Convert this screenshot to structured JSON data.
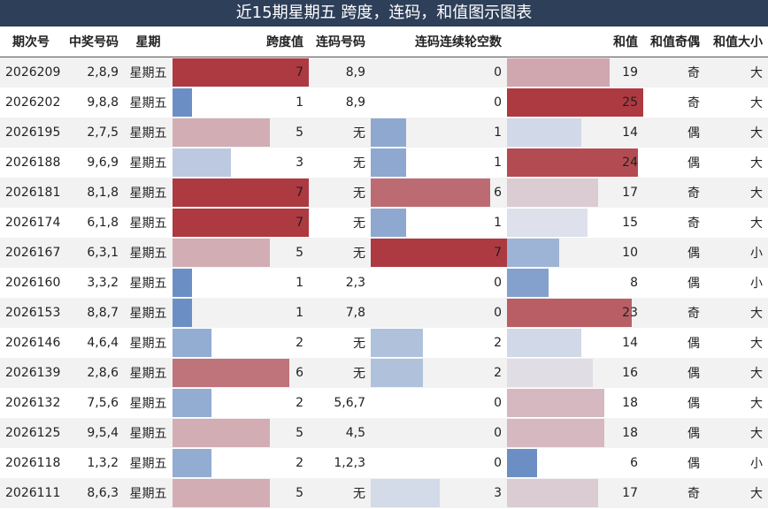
{
  "title": "近15期星期五 跨度，连码，和值图示图表",
  "headers": {
    "period": "期次号",
    "numbers": "中奖号码",
    "weekday": "星期",
    "span": "跨度值",
    "consec": "连码号码",
    "gap": "连码连续轮空数",
    "sum": "和值",
    "parity": "和值奇偶",
    "size": "和值大小"
  },
  "chart_data": {
    "type": "table",
    "scales": {
      "span": {
        "min": 1,
        "max": 7
      },
      "gap": {
        "min": 0,
        "max": 7
      },
      "sum": {
        "min": 6,
        "max": 25
      }
    },
    "colors": {
      "low": "#6b8fc4",
      "mid": "#e4e6ee",
      "high": "#ad3a40"
    },
    "rows": [
      {
        "period": "2026209",
        "numbers": "2,8,9",
        "weekday": "星期五",
        "span": 7,
        "consec": "8,9",
        "gap": 0,
        "sum": 19,
        "parity": "奇",
        "size": "大"
      },
      {
        "period": "2026202",
        "numbers": "9,8,8",
        "weekday": "星期五",
        "span": 1,
        "consec": "8,9",
        "gap": 0,
        "sum": 25,
        "parity": "奇",
        "size": "大"
      },
      {
        "period": "2026195",
        "numbers": "2,7,5",
        "weekday": "星期五",
        "span": 5,
        "consec": "无",
        "gap": 1,
        "sum": 14,
        "parity": "偶",
        "size": "大"
      },
      {
        "period": "2026188",
        "numbers": "9,6,9",
        "weekday": "星期五",
        "span": 3,
        "consec": "无",
        "gap": 1,
        "sum": 24,
        "parity": "偶",
        "size": "大"
      },
      {
        "period": "2026181",
        "numbers": "8,1,8",
        "weekday": "星期五",
        "span": 7,
        "consec": "无",
        "gap": 6,
        "sum": 17,
        "parity": "奇",
        "size": "大"
      },
      {
        "period": "2026174",
        "numbers": "6,1,8",
        "weekday": "星期五",
        "span": 7,
        "consec": "无",
        "gap": 1,
        "sum": 15,
        "parity": "奇",
        "size": "大"
      },
      {
        "period": "2026167",
        "numbers": "6,3,1",
        "weekday": "星期五",
        "span": 5,
        "consec": "无",
        "gap": 7,
        "sum": 10,
        "parity": "偶",
        "size": "小"
      },
      {
        "period": "2026160",
        "numbers": "3,3,2",
        "weekday": "星期五",
        "span": 1,
        "consec": "2,3",
        "gap": 0,
        "sum": 8,
        "parity": "偶",
        "size": "小"
      },
      {
        "period": "2026153",
        "numbers": "8,8,7",
        "weekday": "星期五",
        "span": 1,
        "consec": "7,8",
        "gap": 0,
        "sum": 23,
        "parity": "奇",
        "size": "大"
      },
      {
        "period": "2026146",
        "numbers": "4,6,4",
        "weekday": "星期五",
        "span": 2,
        "consec": "无",
        "gap": 2,
        "sum": 14,
        "parity": "偶",
        "size": "大"
      },
      {
        "period": "2026139",
        "numbers": "2,8,6",
        "weekday": "星期五",
        "span": 6,
        "consec": "无",
        "gap": 2,
        "sum": 16,
        "parity": "偶",
        "size": "大"
      },
      {
        "period": "2026132",
        "numbers": "7,5,6",
        "weekday": "星期五",
        "span": 2,
        "consec": "5,6,7",
        "gap": 0,
        "sum": 18,
        "parity": "偶",
        "size": "大"
      },
      {
        "period": "2026125",
        "numbers": "9,5,4",
        "weekday": "星期五",
        "span": 5,
        "consec": "4,5",
        "gap": 0,
        "sum": 18,
        "parity": "偶",
        "size": "大"
      },
      {
        "period": "2026118",
        "numbers": "1,3,2",
        "weekday": "星期五",
        "span": 2,
        "consec": "1,2,3",
        "gap": 0,
        "sum": 6,
        "parity": "偶",
        "size": "小"
      },
      {
        "period": "2026111",
        "numbers": "8,6,3",
        "weekday": "星期五",
        "span": 5,
        "consec": "无",
        "gap": 3,
        "sum": 17,
        "parity": "奇",
        "size": "大"
      }
    ]
  }
}
